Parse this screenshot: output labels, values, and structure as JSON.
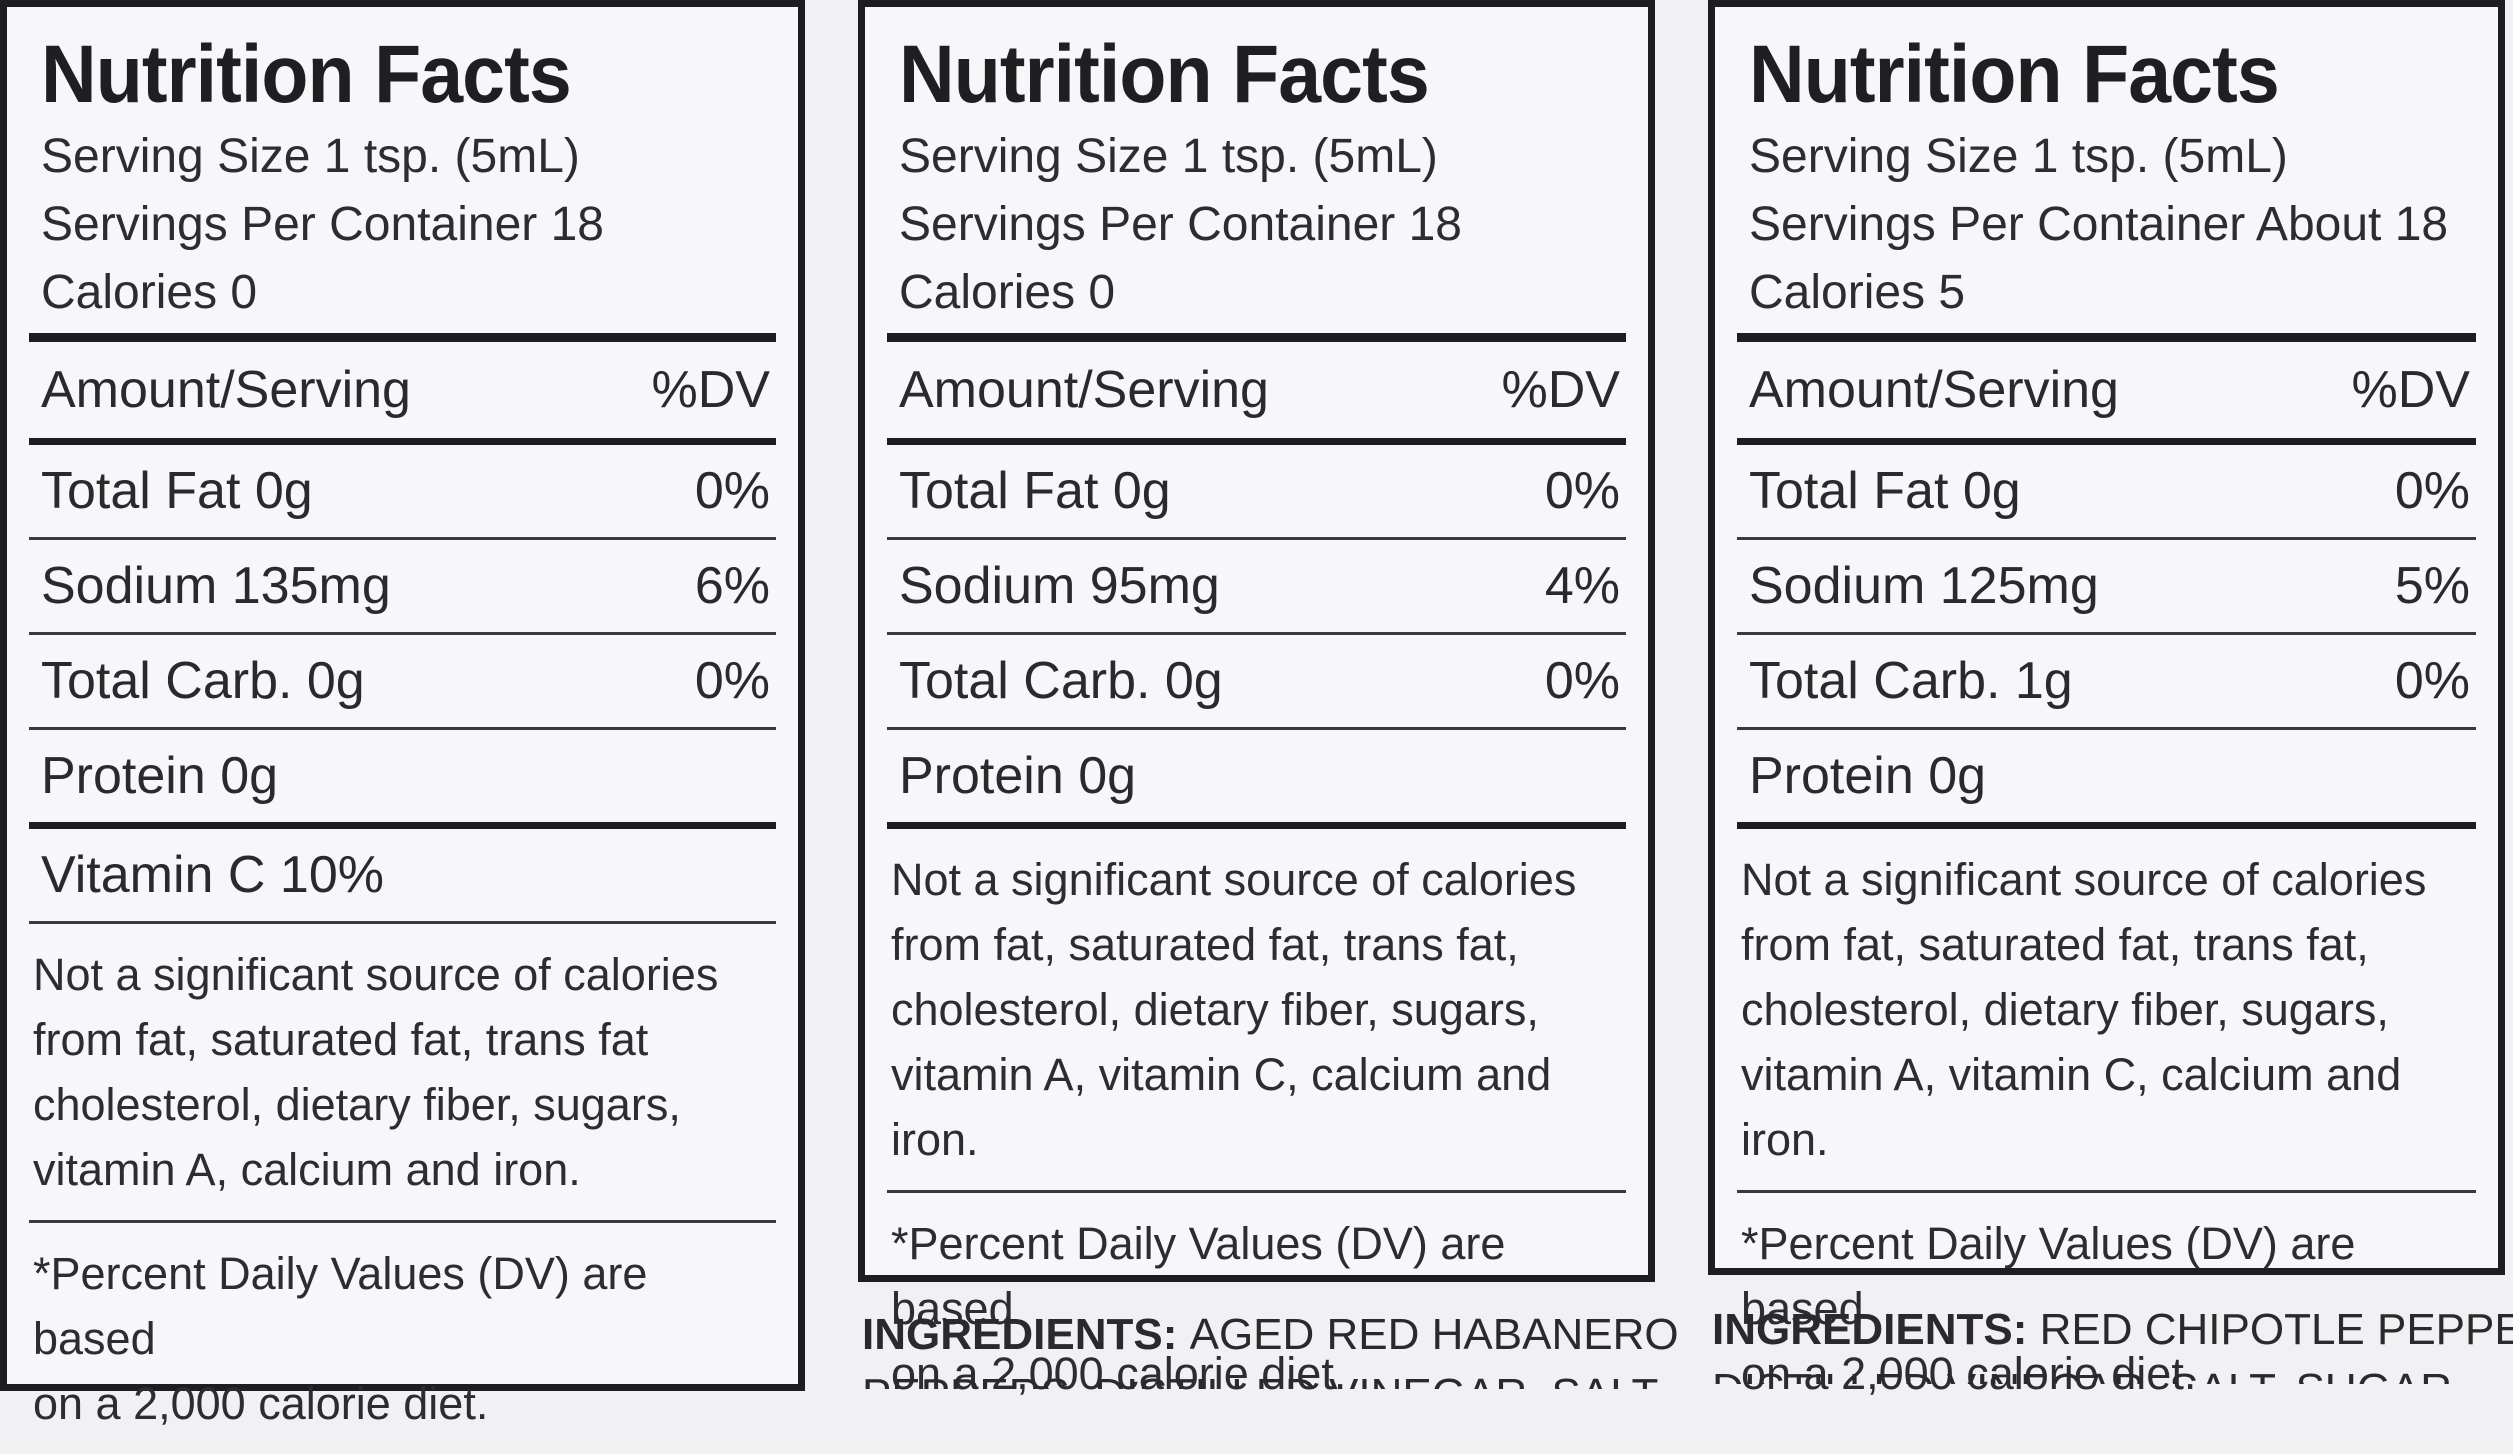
{
  "panels": [
    {
      "title": "Nutrition Facts",
      "serving_size": "Serving Size 1 tsp. (5mL)",
      "servings_per_container": "Servings Per Container 18",
      "calories": "Calories 0",
      "amount_header": "Amount/Serving",
      "dv_header": "%DV",
      "rows": [
        {
          "label": "Total Fat 0g",
          "dv": "0%"
        },
        {
          "label": "Sodium 135mg",
          "dv": "6%"
        },
        {
          "label": "Total Carb. 0g",
          "dv": "0%"
        },
        {
          "label": "Protein 0g",
          "dv": ""
        }
      ],
      "vitamin": "Vitamin C 10%",
      "note_lines": [
        "Not a significant source of calories",
        "from fat, saturated fat, trans fat",
        "cholesterol, dietary fiber, sugars,",
        "vitamin A, calcium and iron."
      ],
      "footnote_lines": [
        "*Percent Daily Values (DV) are based",
        "on a 2,000 calorie diet."
      ]
    },
    {
      "title": "Nutrition Facts",
      "serving_size": "Serving Size 1 tsp. (5mL)",
      "servings_per_container": "Servings Per Container 18",
      "calories": "Calories 0",
      "amount_header": "Amount/Serving",
      "dv_header": "%DV",
      "rows": [
        {
          "label": "Total Fat 0g",
          "dv": "0%"
        },
        {
          "label": "Sodium 95mg",
          "dv": "4%"
        },
        {
          "label": "Total Carb. 0g",
          "dv": "0%"
        },
        {
          "label": "Protein 0g",
          "dv": ""
        }
      ],
      "note_lines": [
        "Not a significant source of calories",
        "from fat, saturated fat, trans fat,",
        "cholesterol, dietary fiber, sugars,",
        "vitamin A, vitamin C, calcium and iron."
      ],
      "footnote_lines": [
        "*Percent Daily Values (DV) are based",
        "on a 2,000 calorie diet."
      ],
      "ingredients_label": "INGREDIENTS:",
      "ingredients_text": "AGED RED HABANERO",
      "ingredients_cut": "PEPPERS, DISTILLED VINEGAR, SALT,"
    },
    {
      "title": "Nutrition Facts",
      "serving_size": "Serving Size 1 tsp. (5mL)",
      "servings_per_container": "Servings Per Container About 18",
      "calories": "Calories 5",
      "amount_header": "Amount/Serving",
      "dv_header": "%DV",
      "rows": [
        {
          "label": "Total Fat 0g",
          "dv": "0%"
        },
        {
          "label": "Sodium 125mg",
          "dv": "5%"
        },
        {
          "label": "Total Carb. 1g",
          "dv": "0%"
        },
        {
          "label": "Protein 0g",
          "dv": ""
        }
      ],
      "note_lines": [
        "Not a significant source of calories",
        "from fat, saturated fat, trans fat,",
        "cholesterol, dietary fiber, sugars,",
        "vitamin A, vitamin C, calcium and iron."
      ],
      "footnote_lines": [
        "*Percent Daily Values (DV) are based",
        "on a 2,000 calorie diet."
      ],
      "ingredients_label": "INGREDIENTS:",
      "ingredients_text": "RED CHIPOTLE PEPPERS,",
      "ingredients_cut": "DISTILLED VINEGAR, SALT, SUGAR,"
    }
  ]
}
